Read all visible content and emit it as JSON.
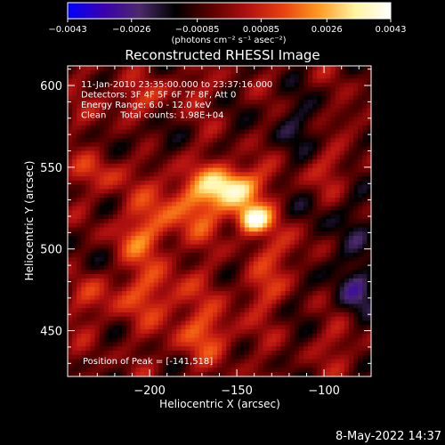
{
  "chart_data": {
    "type": "heatmap",
    "title": "Reconstructed RHESSI Image",
    "xlabel": "Heliocentric X (arcsec)",
    "ylabel": "Heliocentric Y (arcsec)",
    "xlim": [
      -247,
      -73
    ],
    "ylim": [
      422,
      612
    ],
    "x_ticks": [
      -200,
      -150,
      -100
    ],
    "x_tick_labels": [
      "−200",
      "−150",
      "−100"
    ],
    "y_ticks": [
      450,
      500,
      550,
      600
    ],
    "y_tick_labels": [
      "450",
      "500",
      "550",
      "600"
    ],
    "colorbar": {
      "range": [
        -0.0043,
        0.0043
      ],
      "ticks": [
        -0.0043,
        -0.0026,
        -0.00085,
        0.00085,
        0.0026,
        0.0043
      ],
      "tick_labels": [
        "−0.0043",
        "−0.0026",
        "−0.00085",
        "0.00085",
        "0.0026",
        "0.0043"
      ],
      "units": "(photons cm⁻² s⁻¹ asec⁻²)",
      "colormap": [
        "#0000ff",
        "#3a00b0",
        "#4a2a6a",
        "#000000",
        "#5a0000",
        "#b01010",
        "#e84010",
        "#ff9a20",
        "#fff4a0",
        "#ffffff"
      ]
    },
    "annotations": [
      "11-Jan-2010 23:35:00.000 to 23:37:16.000",
      "Detectors: 3F 4F 5F 6F 7F 8F, Att 0",
      "Energy Range: 6.0 - 12.0 keV",
      "Clean     Total counts: 1.98E+04"
    ],
    "peak_label": "Position of Peak = [-141,518]",
    "peak": {
      "x": -141,
      "y": 518,
      "value": 0.0043
    },
    "sources": [
      {
        "x": -152,
        "y": 538,
        "amp": 0.0039,
        "sx": 11,
        "sy": 9
      },
      {
        "x": -141,
        "y": 518,
        "amp": 0.0043,
        "sx": 7,
        "sy": 6
      },
      {
        "x": -178,
        "y": 528,
        "amp": 0.0022,
        "sx": 16,
        "sy": 14
      },
      {
        "x": -208,
        "y": 507,
        "amp": 0.0018,
        "sx": 13,
        "sy": 11
      },
      {
        "x": -225,
        "y": 548,
        "amp": 0.0014,
        "sx": 11,
        "sy": 9
      },
      {
        "x": -196,
        "y": 473,
        "amp": 0.0016,
        "sx": 16,
        "sy": 12
      },
      {
        "x": -168,
        "y": 448,
        "amp": 0.0017,
        "sx": 14,
        "sy": 11
      },
      {
        "x": -120,
        "y": 500,
        "amp": 0.0015,
        "sx": 11,
        "sy": 11
      },
      {
        "x": -135,
        "y": 475,
        "amp": 0.0012,
        "sx": 10,
        "sy": 9
      },
      {
        "x": -98,
        "y": 548,
        "amp": 0.0012,
        "sx": 10,
        "sy": 10
      },
      {
        "x": -84,
        "y": 580,
        "amp": 0.0013,
        "sx": 7,
        "sy": 7
      },
      {
        "x": -212,
        "y": 590,
        "amp": 0.0012,
        "sx": 12,
        "sy": 8
      },
      {
        "x": -180,
        "y": 598,
        "amp": 0.001,
        "sx": 9,
        "sy": 6
      },
      {
        "x": -88,
        "y": 445,
        "amp": 0.0011,
        "sx": 8,
        "sy": 10
      },
      {
        "x": -230,
        "y": 470,
        "amp": 0.0011,
        "sx": 10,
        "sy": 10
      },
      {
        "x": -95,
        "y": 505,
        "amp": -0.001,
        "sx": 15,
        "sy": 25
      },
      {
        "x": -205,
        "y": 565,
        "amp": -0.0008,
        "sx": 12,
        "sy": 10
      },
      {
        "x": -112,
        "y": 575,
        "amp": -0.0009,
        "sx": 18,
        "sy": 14
      },
      {
        "x": -80,
        "y": 470,
        "amp": -0.0012,
        "sx": 10,
        "sy": 14
      },
      {
        "x": -235,
        "y": 500,
        "amp": -0.0008,
        "sx": 10,
        "sy": 14
      }
    ]
  },
  "footer": {
    "timestamp": "8-May-2022 14:37"
  }
}
